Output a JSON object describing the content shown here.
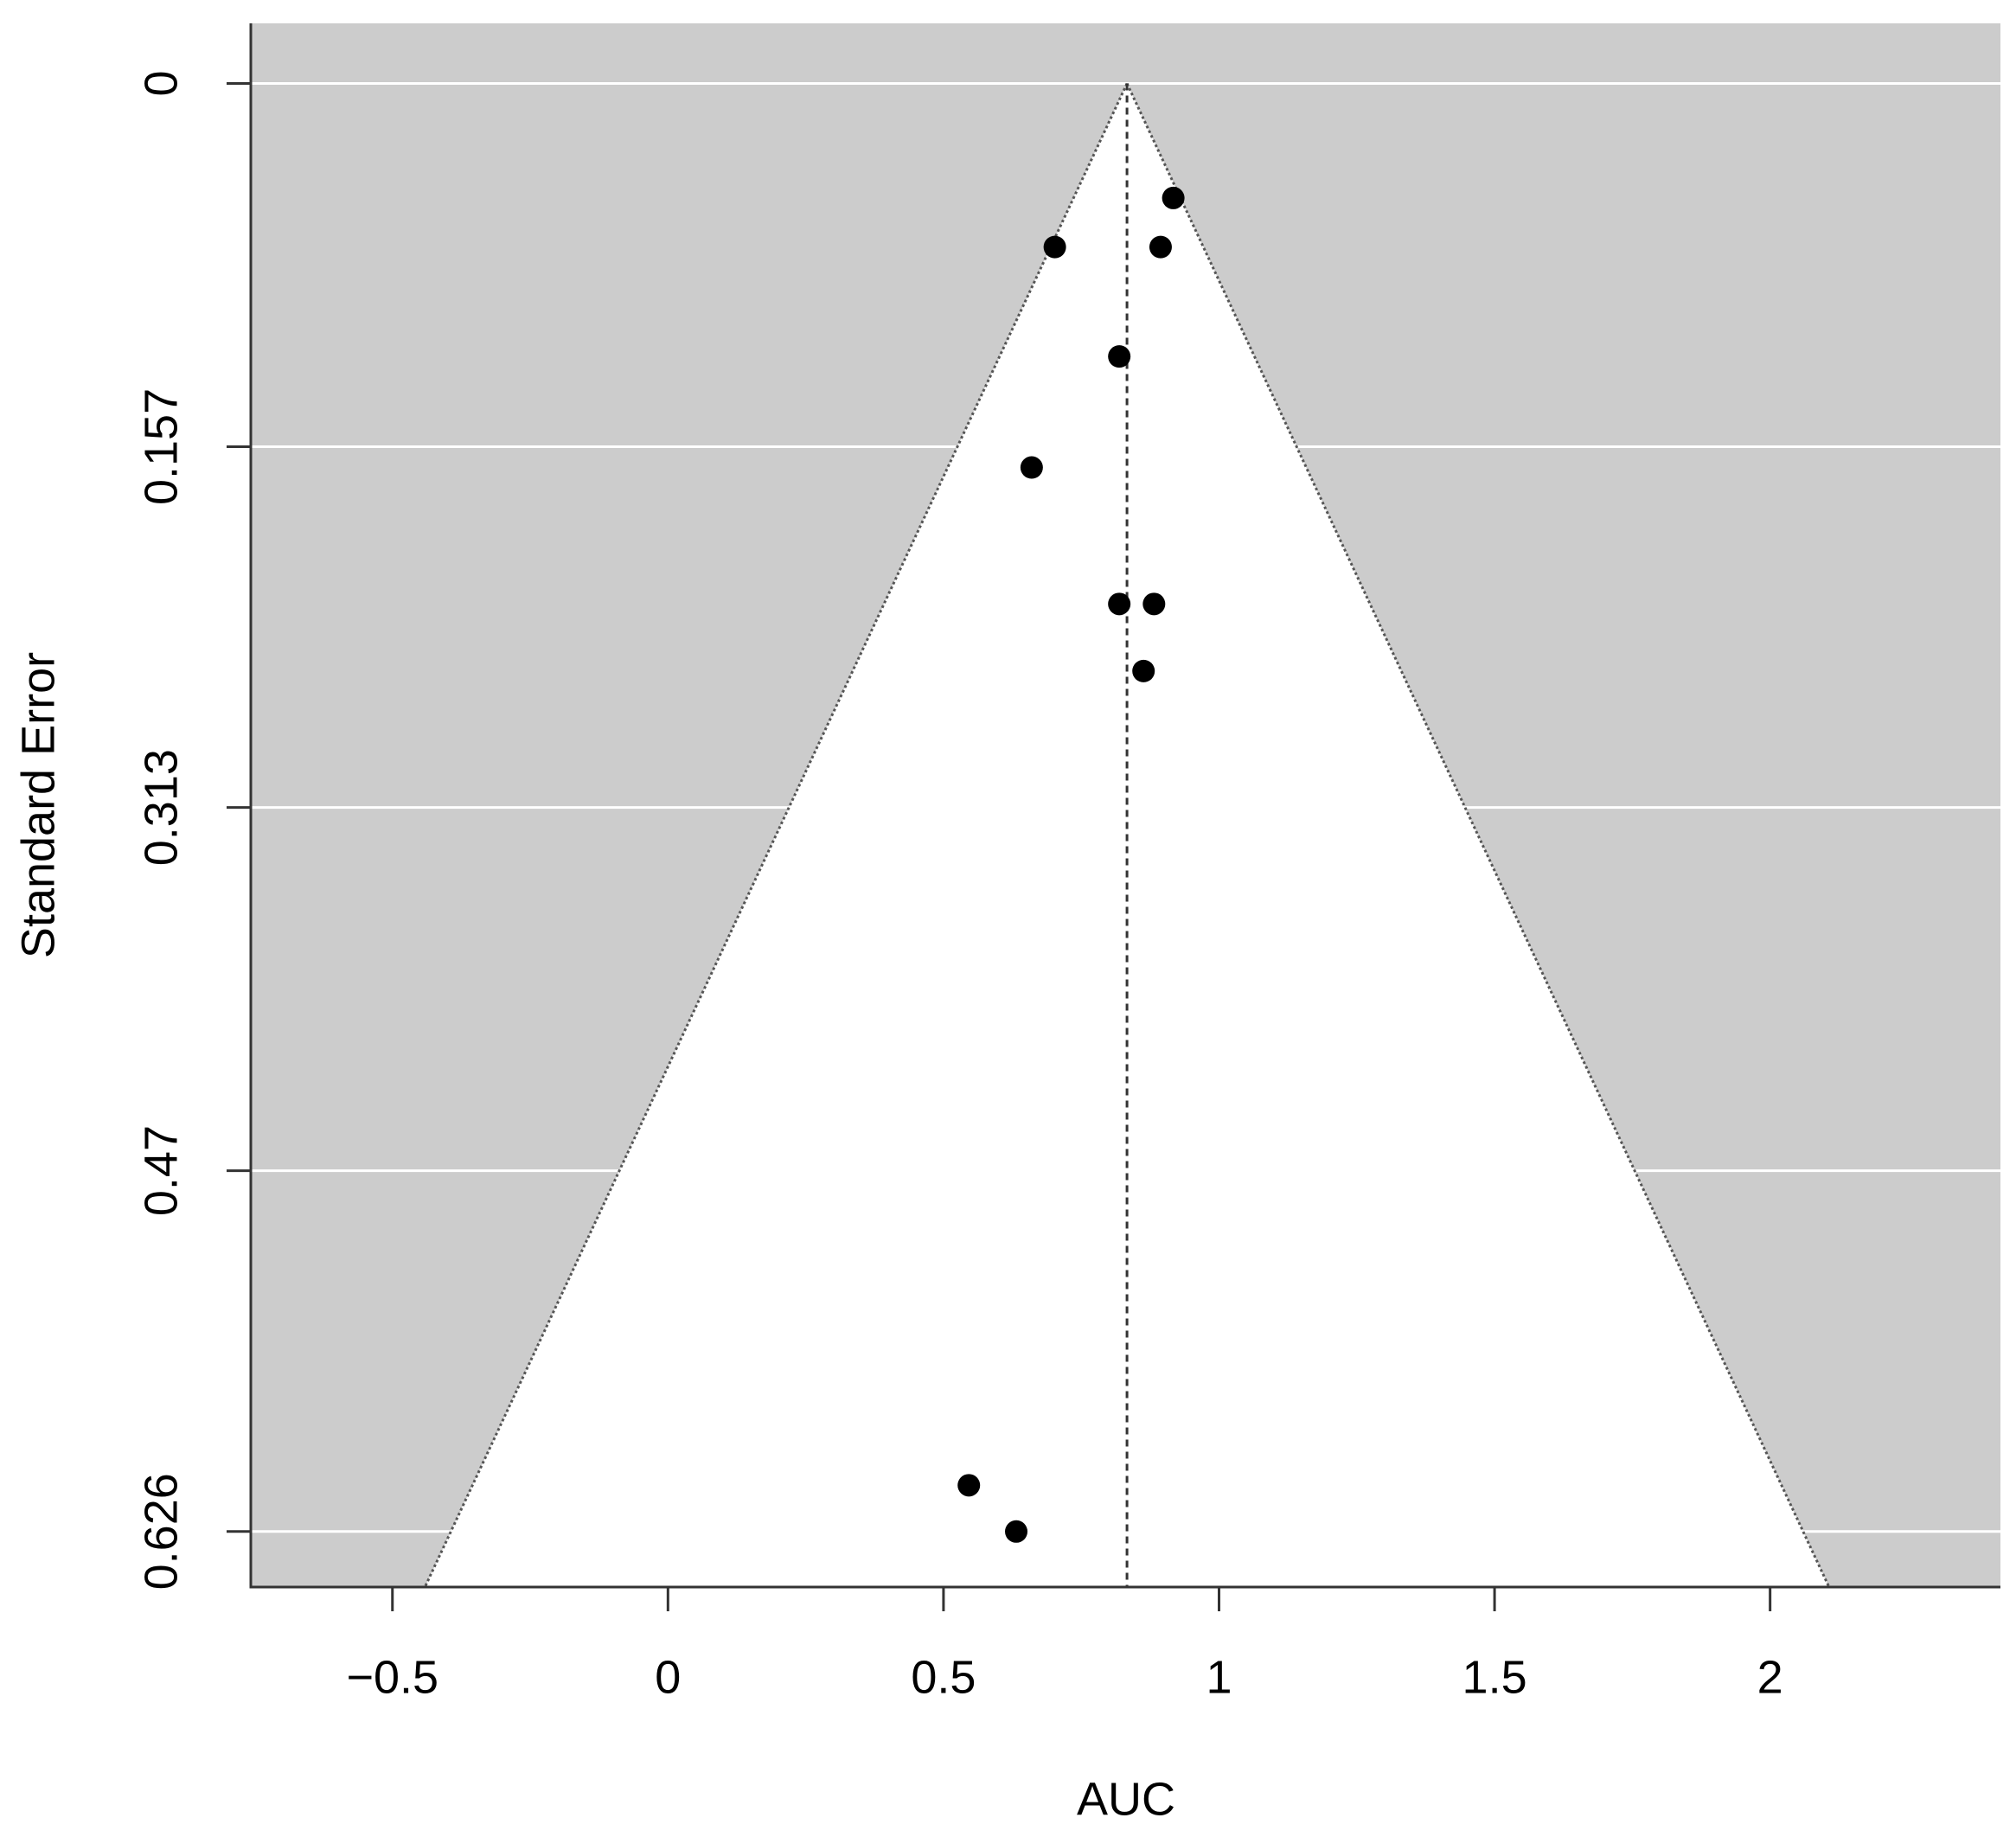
{
  "chart_data": {
    "type": "funnel",
    "x_label": "AUC",
    "y_label": "Standard Error",
    "x": [
      0.917,
      0.702,
      0.894,
      0.819,
      0.66,
      0.819,
      0.882,
      0.863,
      0.546,
      0.632
    ],
    "values": [
      0.0495,
      0.0707,
      0.0707,
      0.118,
      0.166,
      0.225,
      0.225,
      0.254,
      0.606,
      0.626
    ],
    "color": "#000000",
    "reference": 0.833,
    "funnel_z": 1.96,
    "xlim": [
      -0.757,
      2.418
    ],
    "xticks": [
      {
        "value": -0.5,
        "label": "−0.5"
      },
      0,
      0.5,
      1,
      1.5,
      2
    ],
    "ylim": [
      0.65,
      -0.026
    ],
    "yticks": [
      0,
      0.157,
      0.313,
      0.47,
      0.626
    ],
    "grid": true,
    "background": "#cccccc"
  }
}
